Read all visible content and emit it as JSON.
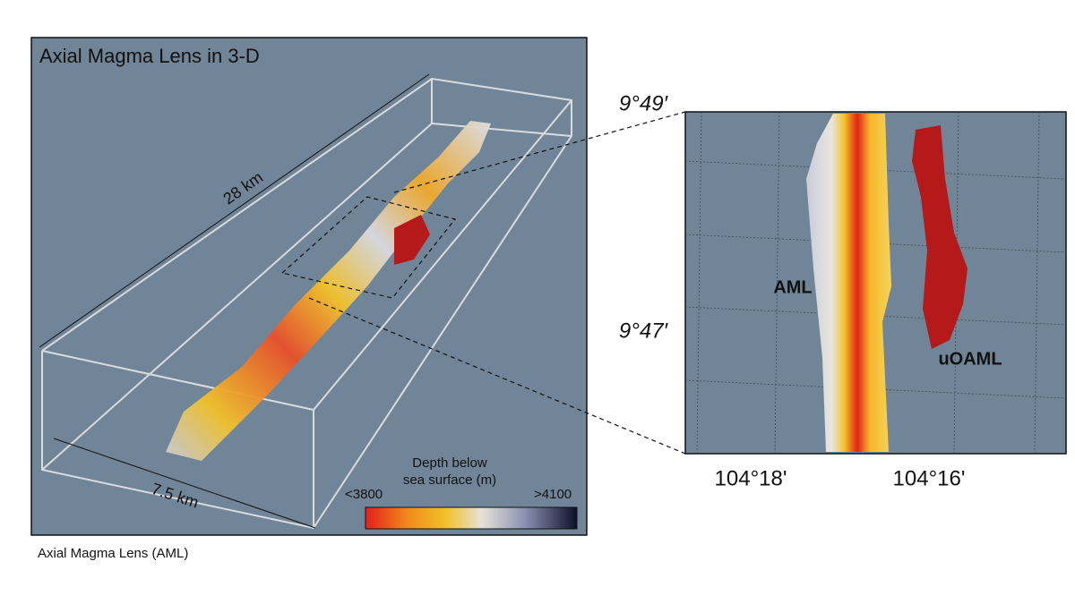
{
  "left_panel": {
    "title": "Axial Magma Lens in 3-D",
    "length_label": "28 km",
    "width_label": "7.5 km",
    "colorbar": {
      "title_line1": "Depth below",
      "title_line2": "sea surface (m)",
      "min_label": "<3800",
      "max_label": ">4100"
    }
  },
  "caption": "Axial Magma Lens (AML)",
  "right_panel": {
    "lat_labels": [
      "9°49′",
      "9°47′"
    ],
    "lon_labels": [
      "104°18'",
      "104°16'"
    ],
    "aml_label": "AML",
    "uoaml_label": "uOAML"
  }
}
